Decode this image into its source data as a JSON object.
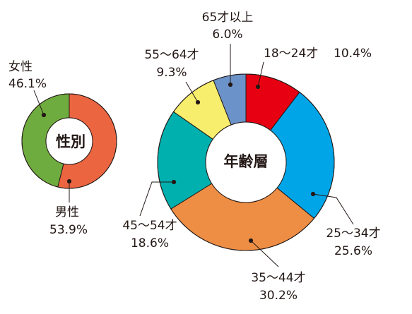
{
  "chart_data": [
    {
      "type": "pie",
      "title": "性別",
      "slices": [
        {
          "label": "男性",
          "value": 53.9,
          "value_text": "53.9%",
          "color": "#ec6541"
        },
        {
          "label": "女性",
          "value": 46.1,
          "value_text": "46.1%",
          "color": "#6fac3f"
        }
      ]
    },
    {
      "type": "pie",
      "title": "年齢層",
      "slices": [
        {
          "label": "18～24才",
          "value": 10.4,
          "value_text": "10.4%",
          "color": "#e60012"
        },
        {
          "label": "25～34才",
          "value": 25.6,
          "value_text": "25.6%",
          "color": "#00a5e8"
        },
        {
          "label": "35～44才",
          "value": 30.2,
          "value_text": "30.2%",
          "color": "#ee8e45"
        },
        {
          "label": "45～54才",
          "value": 18.6,
          "value_text": "18.6%",
          "color": "#00b0ae"
        },
        {
          "label": "55～64才",
          "value": 9.3,
          "value_text": "9.3%",
          "color": "#f8ee6d"
        },
        {
          "label": "65才以上",
          "value": 6.0,
          "value_text": "6.0%",
          "color": "#6b93c9"
        }
      ]
    }
  ]
}
